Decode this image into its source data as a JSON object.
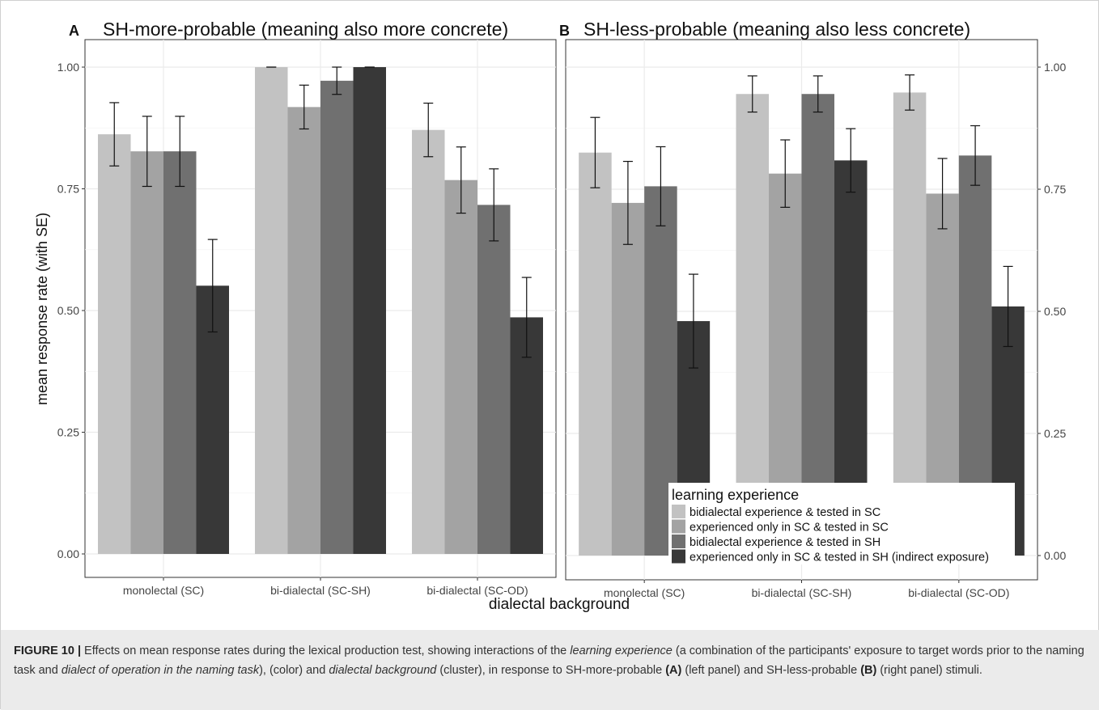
{
  "chart_data": [
    {
      "panel": "A",
      "type": "bar",
      "title": "SH-more-probable (meaning also more concrete)",
      "xlabel": "dialectal background",
      "ylabel": "mean response rate (with SE)",
      "ylim": [
        0,
        1.05
      ],
      "y_ticks": [
        "0.00",
        "0.25",
        "0.50",
        "0.75",
        "1.00"
      ],
      "y_axis_side": "left",
      "grid": true,
      "categories": [
        "monolectal (SC)",
        "bi-dialectal (SC-SH)",
        "bi-dialectal (SC-OD)"
      ],
      "series": [
        {
          "name": "bidialectal experience & tested in SC",
          "color": "#c2c2c2",
          "values": [
            0.862,
            1.0,
            0.871
          ],
          "se": [
            0.065,
            0.0,
            0.055
          ]
        },
        {
          "name": "experienced only in SC & tested in SC",
          "color": "#a3a3a3",
          "values": [
            0.827,
            0.918,
            0.768
          ],
          "se": [
            0.072,
            0.045,
            0.068
          ]
        },
        {
          "name": "bidialectal experience & tested in SH",
          "color": "#707070",
          "values": [
            0.827,
            0.972,
            0.717
          ],
          "se": [
            0.072,
            0.028,
            0.074
          ]
        },
        {
          "name": "experienced only in SC & tested in SH (indirect exposure)",
          "color": "#383838",
          "values": [
            0.551,
            1.0,
            0.486
          ],
          "se": [
            0.095,
            0.0,
            0.082
          ]
        }
      ]
    },
    {
      "panel": "B",
      "type": "bar",
      "title": "SH-less-probable (meaning also less concrete)",
      "xlabel": "dialectal background",
      "ylabel": "",
      "ylim": [
        0,
        1.05
      ],
      "y_ticks": [
        "0.00",
        "0.25",
        "0.50",
        "0.75",
        "1.00"
      ],
      "y_axis_side": "right",
      "grid": true,
      "categories": [
        "monolectal (SC)",
        "bi-dialectal (SC-SH)",
        "bi-dialectal (SC-OD)"
      ],
      "series": [
        {
          "name": "bidialectal experience & tested in SC",
          "color": "#c2c2c2",
          "values": [
            0.825,
            0.945,
            0.948
          ],
          "se": [
            0.072,
            0.037,
            0.036
          ]
        },
        {
          "name": "experienced only in SC & tested in SC",
          "color": "#a3a3a3",
          "values": [
            0.722,
            0.782,
            0.741
          ],
          "se": [
            0.085,
            0.069,
            0.072
          ]
        },
        {
          "name": "bidialectal experience & tested in SH",
          "color": "#707070",
          "values": [
            0.756,
            0.945,
            0.819
          ],
          "se": [
            0.081,
            0.037,
            0.061
          ]
        },
        {
          "name": "experienced only in SC & tested in SH (indirect exposure)",
          "color": "#383838",
          "values": [
            0.48,
            0.809,
            0.51
          ],
          "se": [
            0.096,
            0.065,
            0.082
          ]
        }
      ]
    }
  ],
  "legend": {
    "title": "learning experience",
    "placement": "bottom-right of panel B",
    "items": [
      "bidialectal experience & tested in SC",
      "experienced only in SC & tested in SC",
      "bidialectal experience & tested in SH",
      "experienced only in SC & tested in SH (indirect exposure)"
    ]
  },
  "caption": {
    "figure_label": "FIGURE 10 |",
    "part1": " Effects on mean response rates during the lexical production test, showing interactions of the ",
    "em1": "learning experience",
    "part2": " (a combination of the participants' exposure to target words prior to the naming task and ",
    "em2": "dialect of operation in the naming task",
    "part3": "), (color) and ",
    "em3": "dialectal background",
    "part4": " (cluster), in response to SH-more-probable ",
    "ref_a": "(A)",
    "part5": " (left panel) and SH-less-probable ",
    "ref_b": "(B)",
    "part6": " (right panel) stimuli."
  }
}
